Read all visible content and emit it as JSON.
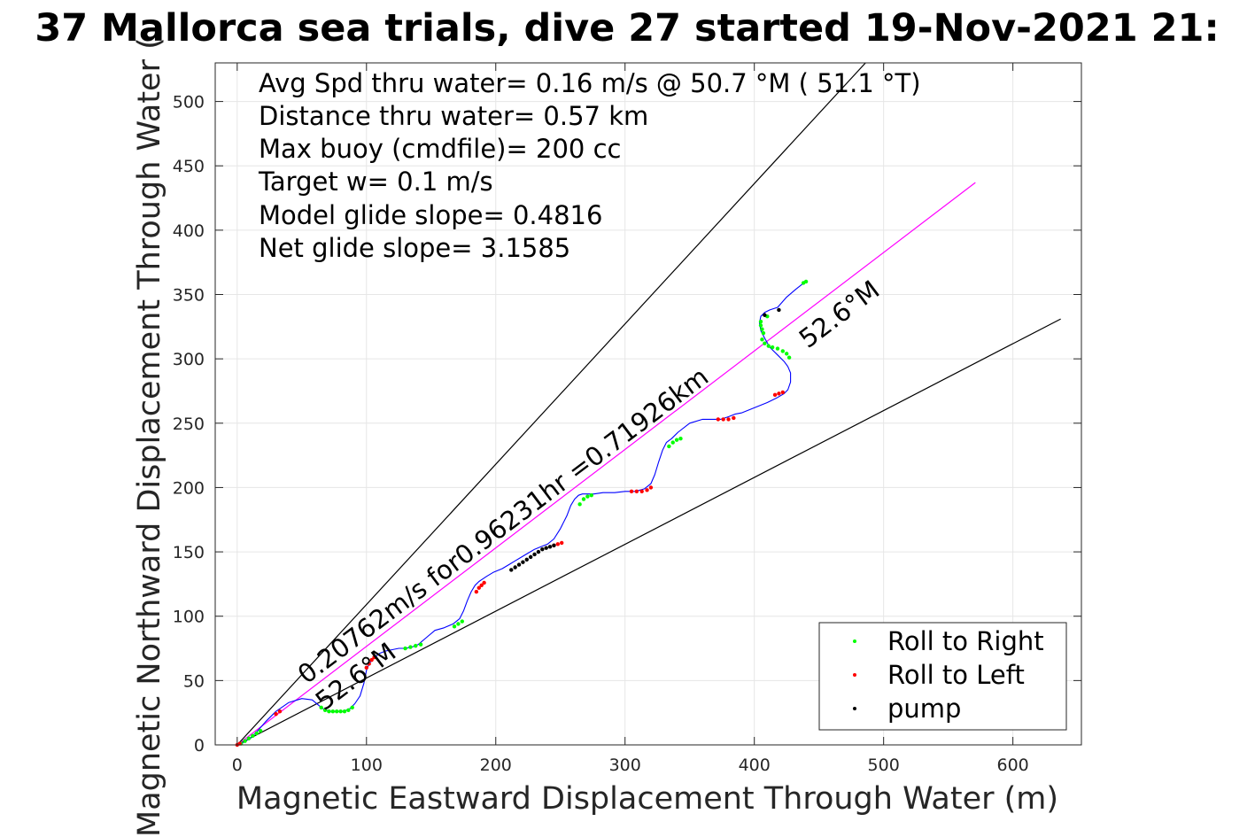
{
  "chart_data": {
    "type": "line",
    "title": "37 Mallorca sea trials, dive 27 started 19-Nov-2021 21:",
    "xlabel": "Magnetic Eastward Displacement Through Water (m)",
    "ylabel": "Magnetic Northward Displacement Through Water (",
    "xlim": [
      -17,
      653
    ],
    "ylim": [
      0,
      530
    ],
    "xticks": [
      0,
      100,
      200,
      300,
      400,
      500,
      600
    ],
    "yticks": [
      0,
      50,
      100,
      150,
      200,
      250,
      300,
      350,
      400,
      450,
      500
    ],
    "grid": true,
    "legend_position": "bottom-right",
    "stats": [
      "Avg Spd thru water=  0.16 m/s @  50.7 °M ( 51.1 °T)",
      "Distance thru water=  0.57 km",
      "Max buoy (cmdfile)= 200 cc",
      "Target w= 0.1 m/s",
      "Model glide slope= 0.4816",
      "Net glide slope= 3.1585"
    ],
    "annotations": {
      "heading_upper": "52.6°M",
      "heading_lower": "52.6°M",
      "speed_line": "0.20762m/s for0.96231hr =0.71926km"
    },
    "reference_lines": [
      {
        "name": "upper-envelope",
        "color": "#000000",
        "x": [
          0,
          486
        ],
        "y": [
          0,
          530
        ]
      },
      {
        "name": "heading-line",
        "color": "#ff00ff",
        "x": [
          0,
          571
        ],
        "y": [
          0,
          437
        ]
      },
      {
        "name": "lower-envelope",
        "color": "#000000",
        "x": [
          0,
          637
        ],
        "y": [
          0,
          331
        ]
      }
    ],
    "track": {
      "color": "#0000ff",
      "x": [
        0,
        5,
        10,
        15,
        22,
        30,
        40,
        50,
        58,
        64,
        68,
        72,
        76,
        82,
        87,
        91,
        95,
        98,
        100,
        102,
        105,
        110,
        115,
        120,
        125,
        130,
        135,
        140,
        147,
        153,
        160,
        167,
        172,
        175,
        178,
        181,
        184,
        187,
        190,
        193,
        198,
        205,
        210,
        215,
        220,
        225,
        230,
        235,
        240,
        245,
        250,
        255,
        258,
        261,
        264,
        267,
        271,
        276,
        283,
        292,
        300,
        308,
        315,
        320,
        323,
        326,
        329,
        332,
        336,
        341,
        350,
        360,
        368,
        374,
        380,
        385,
        390,
        400,
        410,
        418,
        423,
        426,
        428,
        428,
        426,
        423,
        418,
        412,
        408,
        405,
        404,
        405,
        408,
        412,
        418,
        425,
        432,
        437,
        440
      ],
      "y": [
        0,
        2,
        5,
        10,
        18,
        26,
        33,
        36,
        35,
        30,
        27,
        26,
        26,
        26,
        28,
        32,
        38,
        48,
        58,
        63,
        67,
        71,
        73,
        74,
        75,
        75,
        76,
        78,
        84,
        89,
        91,
        94,
        98,
        104,
        112,
        119,
        124,
        127,
        129,
        131,
        134,
        137,
        140,
        143,
        146,
        149,
        152,
        154,
        156,
        160,
        168,
        178,
        186,
        191,
        194,
        195,
        195,
        195,
        196,
        196,
        197,
        197,
        199,
        203,
        210,
        220,
        229,
        235,
        238,
        243,
        250,
        253,
        253,
        253,
        255,
        257,
        258,
        262,
        266,
        270,
        273,
        276,
        282,
        289,
        294,
        298,
        303,
        309,
        316,
        322,
        328,
        333,
        336,
        338,
        340,
        348,
        354,
        358,
        360
      ]
    },
    "series": [
      {
        "name": "Roll to Right",
        "color": "#00ff00",
        "x": [
          3,
          6,
          9,
          12,
          15,
          18,
          65,
          68,
          71,
          74,
          77,
          80,
          83,
          86,
          89,
          130,
          134,
          138,
          142,
          168,
          171,
          174,
          265,
          268,
          271,
          274,
          334,
          337,
          340,
          343,
          407,
          406,
          405,
          405,
          406,
          408,
          411,
          414,
          418,
          422,
          425,
          427,
          410,
          438,
          440
        ],
        "y": [
          1,
          3,
          5,
          7,
          9,
          11,
          29,
          27,
          26,
          26,
          26,
          26,
          26,
          27,
          29,
          75,
          76,
          77,
          78,
          92,
          94,
          96,
          187,
          191,
          193,
          194,
          232,
          235,
          237,
          238,
          320,
          323,
          326,
          329,
          315,
          312,
          310,
          309,
          308,
          306,
          304,
          301,
          333,
          359,
          360
        ]
      },
      {
        "name": "Roll to Left",
        "color": "#ff0000",
        "x": [
          0,
          2,
          30,
          33,
          100,
          102,
          104,
          106,
          185,
          187,
          189,
          191,
          245,
          248,
          251,
          305,
          309,
          313,
          317,
          320,
          372,
          376,
          380,
          384,
          416,
          419,
          422
        ],
        "y": [
          0,
          1,
          24,
          26,
          60,
          63,
          66,
          68,
          119,
          122,
          124,
          126,
          155,
          156,
          157,
          197,
          197,
          197,
          198,
          200,
          253,
          253,
          253,
          254,
          272,
          273,
          274
        ]
      },
      {
        "name": "pump",
        "color": "#000000",
        "x": [
          212,
          215,
          218,
          221,
          224,
          227,
          230,
          233,
          236,
          239,
          242,
          245,
          408,
          419
        ],
        "y": [
          136,
          138,
          140,
          142,
          144,
          146,
          148,
          150,
          152,
          153,
          154,
          155,
          334,
          338
        ]
      }
    ]
  }
}
